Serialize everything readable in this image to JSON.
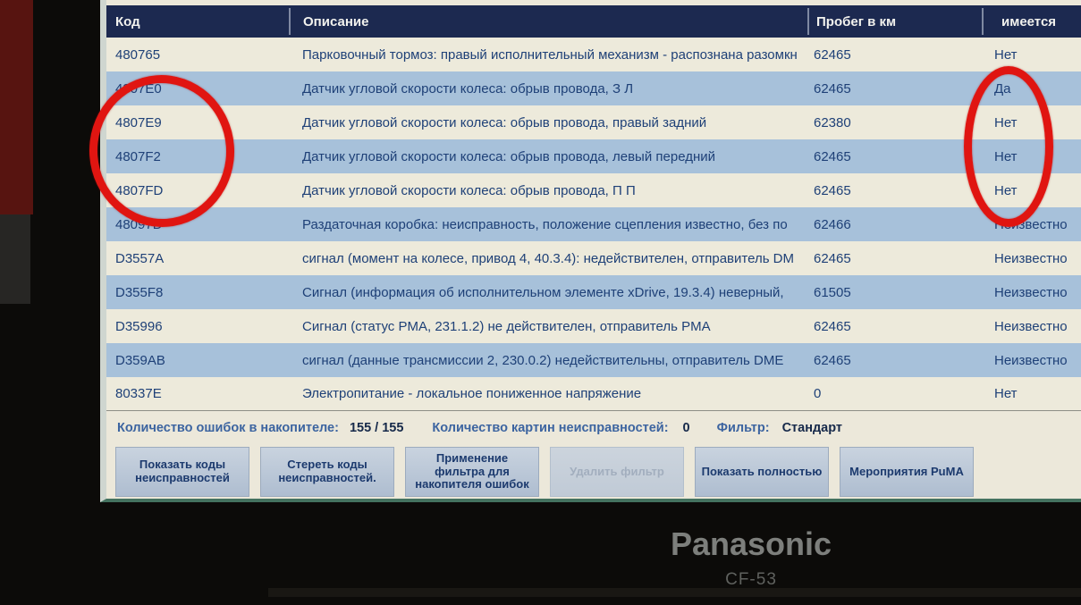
{
  "table": {
    "columns": [
      "Код",
      "Описание",
      "Пробег в км",
      "имеется"
    ],
    "rows": [
      {
        "code": "480765",
        "description": "Парковочный тормоз: правый исполнительный механизм - распознана разомкн",
        "mileage": "62465",
        "present": "Нет"
      },
      {
        "code": "4807E0",
        "description": "Датчик угловой скорости колеса: обрыв провода, З Л",
        "mileage": "62465",
        "present": "Да"
      },
      {
        "code": "4807E9",
        "description": "Датчик угловой скорости колеса: обрыв провода, правый задний",
        "mileage": "62380",
        "present": "Нет"
      },
      {
        "code": "4807F2",
        "description": "Датчик угловой скорости колеса: обрыв провода, левый передний",
        "mileage": "62465",
        "present": "Нет"
      },
      {
        "code": "4807FD",
        "description": "Датчик угловой скорости колеса: обрыв провода, П П",
        "mileage": "62465",
        "present": "Нет"
      },
      {
        "code": "48097D",
        "description": "Раздаточная коробка: неисправность, положение сцепления известно, без по",
        "mileage": "62466",
        "present": "Неизвестно"
      },
      {
        "code": "D3557A",
        "description": "сигнал (момент на колесе, привод 4, 40.3.4): недействителен, отправитель DM",
        "mileage": "62465",
        "present": "Неизвестно"
      },
      {
        "code": "D355F8",
        "description": "Сигнал (информация об исполнительном элементе xDrive, 19.3.4) неверный,",
        "mileage": "61505",
        "present": "Неизвестно"
      },
      {
        "code": "D35996",
        "description": "Сигнал (статус PMA, 231.1.2) не действителен, отправитель PMA",
        "mileage": "62465",
        "present": "Неизвестно"
      },
      {
        "code": "D359AB",
        "description": "сигнал (данные трансмиссии 2, 230.0.2) недействительны, отправитель DME",
        "mileage": "62465",
        "present": "Неизвестно"
      },
      {
        "code": "80337E",
        "description": "Электропитание - локальное пониженное напряжение",
        "mileage": "0",
        "present": "Нет"
      }
    ]
  },
  "status_bar": {
    "errors_label": "Количество ошибок в накопителе:",
    "errors_value": "155 / 155",
    "patterns_label": "Количество картин неисправностей:",
    "patterns_value": "0",
    "filter_label": "Фильтр:",
    "filter_value": "Стандарт"
  },
  "buttons": [
    {
      "label": "Показать коды неисправностей",
      "enabled": true
    },
    {
      "label": "Стереть коды неисправностей.",
      "enabled": true
    },
    {
      "label": "Применение фильтра для накопителя ошибок",
      "enabled": true
    },
    {
      "label": "Удалить фильтр",
      "enabled": false
    },
    {
      "label": "Показать полностью",
      "enabled": true
    },
    {
      "label": "Мероприятия PuMA",
      "enabled": true
    }
  ],
  "device": {
    "brand": "Panasonic",
    "model": "CF-53"
  },
  "colors": {
    "header_bg": "#1c2950",
    "row_base": "#edeadb",
    "row_alt": "#a7c1da",
    "row_text": "#1e4077",
    "annotation_red": "#e01511"
  }
}
